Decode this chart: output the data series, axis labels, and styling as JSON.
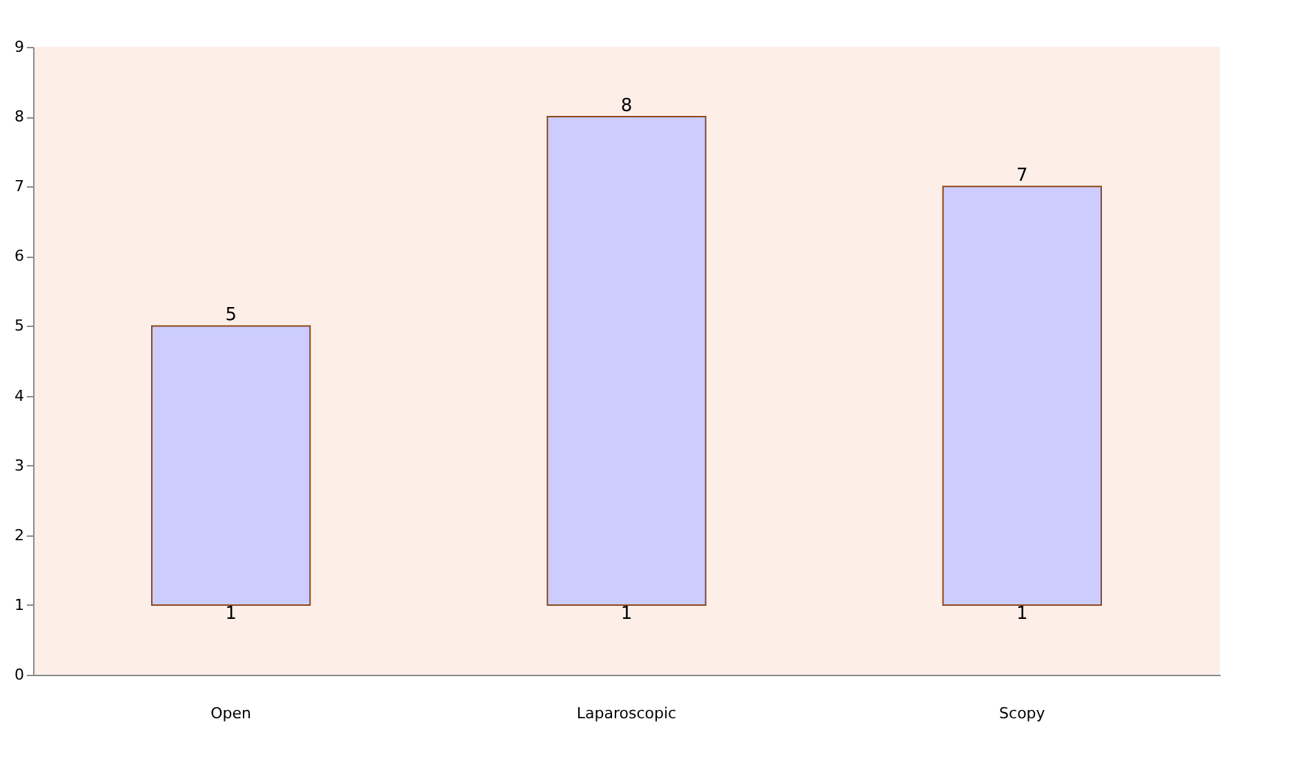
{
  "chart_data": {
    "type": "bar",
    "categories": [
      "Open",
      "Laparoscopic",
      "Scopy"
    ],
    "base": [
      1,
      1,
      1
    ],
    "values": [
      4,
      7,
      6
    ],
    "value_labels": [
      "5",
      "8",
      "7"
    ],
    "color": "#ccccff",
    "ylim": [
      0,
      9
    ],
    "yticks": [
      0,
      1,
      2,
      3,
      4,
      5,
      6,
      7,
      8,
      9
    ],
    "grid": false,
    "annotations": [
      {
        "text": "1",
        "x": "Open",
        "y": 1
      },
      {
        "text": "1",
        "x": "Laparoscopic",
        "y": 1
      },
      {
        "text": "1",
        "x": "Scopy",
        "y": 1
      }
    ]
  }
}
